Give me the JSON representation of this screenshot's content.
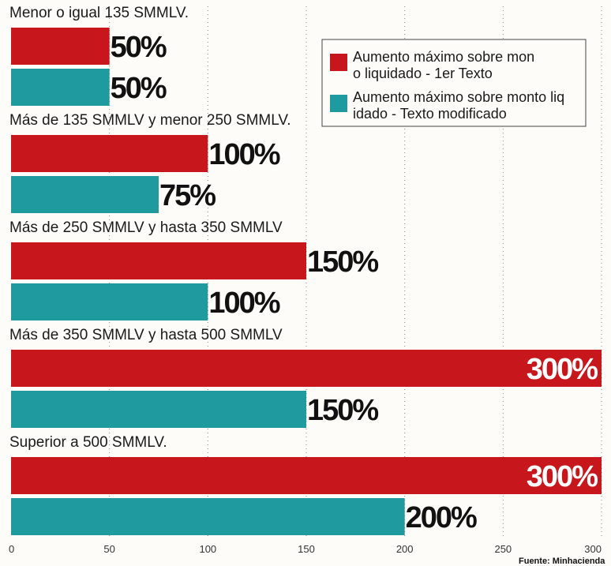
{
  "chart_data": {
    "type": "bar",
    "orientation": "horizontal",
    "categories": [
      "Menor o igual 135 SMMLV.",
      "Más de 135 SMMLV y menor  250 SMMLV.",
      "Más de 250 SMMLV y hasta 350 SMMLV",
      "Más de 350 SMMLV y hasta 500 SMMLV",
      "Superior a 500 SMMLV."
    ],
    "series": [
      {
        "name": "Aumento máximo sobre monto liquidado - 1er Texto",
        "values": [
          50,
          100,
          150,
          300,
          300
        ],
        "labels": [
          "50%",
          "100%",
          "150%",
          "300%",
          "300%"
        ],
        "color": "#c8171c"
      },
      {
        "name": "Aumento máximo sobre monto liquidado - Texto modificado",
        "values": [
          50,
          75,
          100,
          150,
          200
        ],
        "labels": [
          "50%",
          "75%",
          "100%",
          "150%",
          "200%"
        ],
        "color": "#1f9a9e"
      }
    ],
    "xlim": [
      0,
      300
    ],
    "xticks": [
      0,
      50,
      100,
      150,
      200,
      250,
      300
    ],
    "xtick_labels": [
      "0",
      "50",
      "100",
      "150",
      "200",
      "250",
      "300"
    ],
    "legend_position": "top-right",
    "grid": "vertical dotted",
    "source": "Fuente: Minhacienda"
  }
}
